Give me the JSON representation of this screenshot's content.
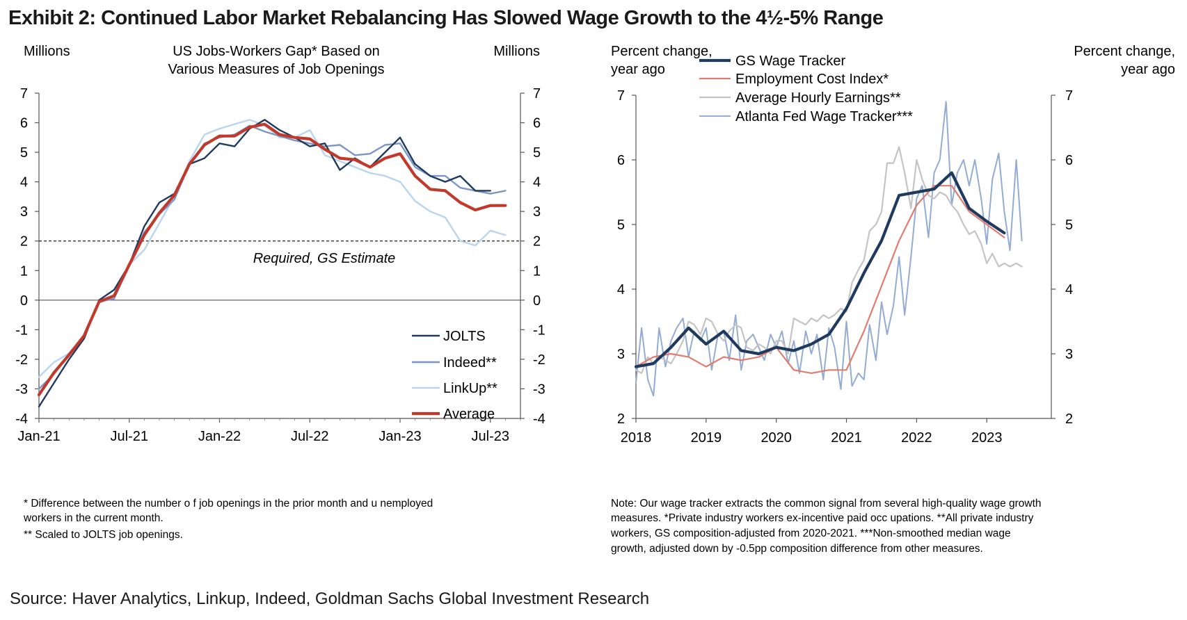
{
  "title": "Exhibit 2: Continued Labor Market Rebalancing Has Slowed Wage Growth to the 4½-5% Range",
  "source": "Source: Haver Analytics, Linkup, Indeed, Goldman Sachs Global Investment Research",
  "chart_data": [
    {
      "type": "line",
      "title_lines": [
        "US Jobs-Workers Gap* Based on",
        "Various Measures of Job Openings"
      ],
      "left_axis_label": "Millions",
      "right_axis_label": "Millions",
      "ylim": [
        -4,
        7
      ],
      "y_ticks": [
        "-4",
        "-3",
        "-2",
        "-1",
        "0",
        "1",
        "2",
        "3",
        "4",
        "5",
        "6",
        "7"
      ],
      "x_tick_labels": [
        "Jan-21",
        "Jul-21",
        "Jan-22",
        "Jul-22",
        "Jan-23",
        "Jul-23"
      ],
      "x_tick_months": [
        0,
        6,
        12,
        18,
        24,
        30
      ],
      "x_unit": "months since Jan-21",
      "xlim": [
        0,
        32
      ],
      "reference_line": {
        "y": 2,
        "label": "Required, GS Estimate"
      },
      "legend_position": "bottom-right",
      "series": [
        {
          "name": "JOLTS",
          "color": "#1f3a5f",
          "width": 2.4,
          "x": [
            0,
            1,
            2,
            3,
            4,
            5,
            6,
            7,
            8,
            9,
            10,
            11,
            12,
            13,
            14,
            15,
            16,
            17,
            18,
            19,
            20,
            21,
            22,
            23,
            24,
            25,
            26,
            27,
            28,
            29,
            30
          ],
          "values": [
            -3.6,
            -2.8,
            -2.0,
            -1.3,
            0.0,
            0.35,
            1.2,
            2.5,
            3.3,
            3.6,
            4.6,
            4.8,
            5.3,
            5.2,
            5.8,
            6.1,
            5.75,
            5.5,
            5.2,
            5.3,
            4.4,
            4.8,
            4.5,
            5.0,
            5.5,
            4.6,
            4.2,
            4.0,
            4.2,
            3.7,
            3.7
          ]
        },
        {
          "name": "Indeed**",
          "color": "#7b96c6",
          "width": 2.4,
          "x": [
            0,
            1,
            2,
            3,
            4,
            5,
            6,
            7,
            8,
            9,
            10,
            11,
            12,
            13,
            14,
            15,
            16,
            17,
            18,
            19,
            20,
            21,
            22,
            23,
            24,
            25,
            26,
            27,
            28,
            29,
            30,
            31
          ],
          "values": [
            -3.0,
            -2.5,
            -1.8,
            -1.2,
            -0.05,
            0.05,
            1.2,
            2.3,
            2.9,
            3.4,
            4.6,
            5.3,
            5.5,
            5.6,
            5.9,
            5.7,
            5.55,
            5.4,
            5.3,
            5.2,
            5.25,
            4.9,
            4.95,
            5.25,
            5.3,
            4.5,
            4.2,
            4.2,
            3.8,
            3.7,
            3.6,
            3.7
          ]
        },
        {
          "name": "LinkUp**",
          "color": "#b9d5ef",
          "width": 2.4,
          "x": [
            0,
            1,
            2,
            3,
            4,
            5,
            6,
            7,
            8,
            9,
            10,
            11,
            12,
            13,
            14,
            15,
            16,
            17,
            18,
            19,
            20,
            21,
            22,
            23,
            24,
            25,
            26,
            27,
            28,
            29,
            30,
            31
          ],
          "values": [
            -2.6,
            -2.1,
            -1.8,
            -1.2,
            -0.1,
            0.1,
            1.2,
            1.7,
            2.6,
            3.5,
            4.7,
            5.6,
            5.8,
            5.95,
            6.1,
            5.9,
            5.5,
            5.5,
            5.75,
            4.9,
            4.7,
            4.5,
            4.3,
            4.2,
            4.0,
            3.35,
            3.0,
            2.8,
            2.0,
            1.85,
            2.35,
            2.2
          ]
        },
        {
          "name": "Average",
          "color": "#c0392b",
          "width": 4.2,
          "x": [
            0,
            1,
            2,
            3,
            4,
            5,
            6,
            7,
            8,
            9,
            10,
            11,
            12,
            13,
            14,
            15,
            16,
            17,
            18,
            19,
            20,
            21,
            22,
            23,
            24,
            25,
            26,
            27,
            28,
            29,
            30,
            31
          ],
          "values": [
            -3.2,
            -2.45,
            -1.85,
            -1.2,
            -0.05,
            0.15,
            1.2,
            2.2,
            2.95,
            3.55,
            4.6,
            5.25,
            5.55,
            5.55,
            5.85,
            5.95,
            5.6,
            5.5,
            5.45,
            5.1,
            4.8,
            4.75,
            4.5,
            4.8,
            4.95,
            4.2,
            3.75,
            3.7,
            3.3,
            3.05,
            3.2,
            3.2
          ]
        }
      ],
      "footnotes": [
        "* Difference between the number o f job openings in the prior month and u nemployed",
        "workers in the current month.",
        "** Scaled to JOLTS job openings."
      ]
    },
    {
      "type": "line",
      "left_axis_label_lines": [
        "Percent change,",
        "year ago"
      ],
      "right_axis_label_lines": [
        "Percent change,",
        "year ago"
      ],
      "ylim": [
        2,
        7
      ],
      "y_ticks": [
        "2",
        "3",
        "4",
        "5",
        "6",
        "7"
      ],
      "x_tick_labels": [
        "2018",
        "2019",
        "2020",
        "2021",
        "2022",
        "2023"
      ],
      "x_tick_years": [
        2018,
        2019,
        2020,
        2021,
        2022,
        2023
      ],
      "xlim": [
        2018,
        2023.92
      ],
      "legend_position": "top-left",
      "series": [
        {
          "name": "GS Wage Tracker",
          "color": "#1f3a5f",
          "width": 4.2,
          "x": [
            2018.0,
            2018.25,
            2018.5,
            2018.75,
            2019.0,
            2019.25,
            2019.5,
            2019.75,
            2020.0,
            2020.25,
            2020.5,
            2020.75,
            2021.0,
            2021.25,
            2021.5,
            2021.75,
            2022.0,
            2022.25,
            2022.5,
            2022.75,
            2023.0,
            2023.25
          ],
          "values": [
            2.8,
            2.85,
            3.1,
            3.4,
            3.15,
            3.35,
            3.05,
            3.0,
            3.1,
            3.05,
            3.15,
            3.3,
            3.7,
            4.25,
            4.75,
            5.45,
            5.5,
            5.55,
            5.8,
            5.25,
            5.05,
            4.87
          ]
        },
        {
          "name": "Employment Cost Index*",
          "color": "#e07b6e",
          "width": 2.2,
          "x": [
            2018.0,
            2018.25,
            2018.5,
            2018.75,
            2019.0,
            2019.25,
            2019.5,
            2019.75,
            2020.0,
            2020.25,
            2020.5,
            2020.75,
            2021.0,
            2021.25,
            2021.5,
            2021.75,
            2022.0,
            2022.25,
            2022.5,
            2022.75,
            2023.0,
            2023.25
          ],
          "values": [
            2.8,
            2.95,
            3.0,
            2.95,
            2.8,
            2.95,
            2.9,
            2.95,
            3.1,
            2.75,
            2.7,
            2.75,
            2.75,
            3.35,
            4.05,
            4.75,
            5.3,
            5.6,
            5.6,
            5.2,
            5.0,
            4.8
          ]
        },
        {
          "name": "Average Hourly Earnings**",
          "color": "#c4c4c4",
          "width": 2.2,
          "x": [
            2018.0,
            2018.08,
            2018.17,
            2018.25,
            2018.33,
            2018.42,
            2018.5,
            2018.58,
            2018.67,
            2018.75,
            2018.83,
            2018.92,
            2019.0,
            2019.08,
            2019.17,
            2019.25,
            2019.33,
            2019.42,
            2019.5,
            2019.58,
            2019.67,
            2019.75,
            2019.83,
            2019.92,
            2020.0,
            2020.08,
            2020.17,
            2020.25,
            2020.33,
            2020.42,
            2020.5,
            2020.58,
            2020.67,
            2020.75,
            2020.83,
            2020.92,
            2021.0,
            2021.08,
            2021.17,
            2021.25,
            2021.33,
            2021.42,
            2021.5,
            2021.58,
            2021.67,
            2021.75,
            2021.83,
            2021.92,
            2022.0,
            2022.08,
            2022.17,
            2022.25,
            2022.33,
            2022.42,
            2022.5,
            2022.58,
            2022.67,
            2022.75,
            2022.83,
            2022.92,
            2023.0,
            2023.08,
            2023.17,
            2023.25,
            2023.33,
            2023.42,
            2023.5
          ],
          "values": [
            2.75,
            2.7,
            2.95,
            2.85,
            2.95,
            2.9,
            2.85,
            3.0,
            3.2,
            3.5,
            3.45,
            3.3,
            3.55,
            3.5,
            3.3,
            3.2,
            3.35,
            3.45,
            3.4,
            3.1,
            3.05,
            3.15,
            3.1,
            3.0,
            3.2,
            3.2,
            3.0,
            3.55,
            3.5,
            3.45,
            3.55,
            3.5,
            3.6,
            3.55,
            3.6,
            3.7,
            3.65,
            4.1,
            4.3,
            4.45,
            4.9,
            5.0,
            5.2,
            5.95,
            5.95,
            6.2,
            5.8,
            5.25,
            6.0,
            5.7,
            5.45,
            5.4,
            5.5,
            5.45,
            5.3,
            5.2,
            5.0,
            4.85,
            4.9,
            4.7,
            4.4,
            4.55,
            4.35,
            4.4,
            4.35,
            4.4,
            4.35
          ]
        },
        {
          "name": "Atlanta Fed Wage Tracker***",
          "color": "#92acd3",
          "width": 2.0,
          "x": [
            2018.0,
            2018.08,
            2018.17,
            2018.25,
            2018.33,
            2018.42,
            2018.5,
            2018.58,
            2018.67,
            2018.75,
            2018.83,
            2018.92,
            2019.0,
            2019.08,
            2019.17,
            2019.25,
            2019.33,
            2019.42,
            2019.5,
            2019.58,
            2019.67,
            2019.75,
            2019.83,
            2019.92,
            2020.0,
            2020.08,
            2020.17,
            2020.25,
            2020.33,
            2020.42,
            2020.5,
            2020.58,
            2020.67,
            2020.75,
            2020.83,
            2020.92,
            2021.0,
            2021.08,
            2021.17,
            2021.25,
            2021.33,
            2021.42,
            2021.5,
            2021.58,
            2021.67,
            2021.75,
            2021.83,
            2021.92,
            2022.0,
            2022.08,
            2022.17,
            2022.25,
            2022.33,
            2022.42,
            2022.5,
            2022.58,
            2022.67,
            2022.75,
            2022.83,
            2022.92,
            2023.0,
            2023.08,
            2023.17,
            2023.25,
            2023.33,
            2023.42,
            2023.5
          ],
          "values": [
            2.55,
            3.4,
            2.6,
            2.35,
            3.4,
            2.8,
            3.2,
            3.4,
            3.55,
            2.95,
            3.35,
            3.2,
            3.4,
            2.75,
            3.3,
            3.35,
            2.9,
            3.6,
            2.75,
            3.2,
            3.3,
            3.1,
            2.9,
            3.3,
            3.1,
            3.35,
            2.85,
            3.2,
            2.7,
            3.35,
            3.0,
            3.3,
            2.6,
            3.4,
            3.1,
            2.45,
            3.5,
            2.5,
            2.7,
            2.6,
            3.45,
            2.9,
            3.8,
            3.3,
            3.75,
            4.5,
            3.6,
            4.5,
            5.4,
            5.6,
            4.8,
            5.8,
            6.0,
            6.9,
            5.3,
            5.8,
            6.0,
            5.6,
            6.0,
            5.4,
            4.7,
            5.7,
            6.1,
            5.2,
            4.6,
            6.0,
            4.75
          ]
        }
      ],
      "note_lines": [
        "Note: Our wage tracker extracts the common signal from several high-quality wage growth",
        "measures. *Private industry workers ex-incentive paid occ upations. **All private industry",
        "workers, GS composition-adjusted from 2020-2021. ***Non-smoothed median  wage",
        "growth, adjusted down by -0.5pp composition difference from other measures."
      ]
    }
  ]
}
